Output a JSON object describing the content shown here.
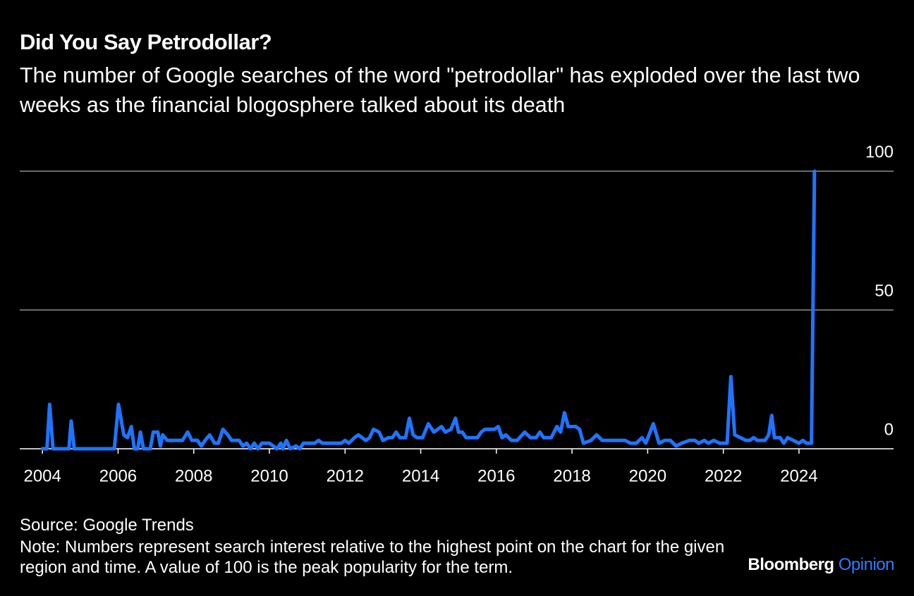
{
  "chart_data": {
    "type": "line",
    "title": "Did You Say Petrodollar?",
    "subtitle": "The number of Google searches of the word \"petrodollar\" has exploded over the last two weeks as the financial blogosphere talked about its death",
    "source": "Source: Google Trends",
    "note": "Note: Numbers represent search interest relative to the highest point on the chart for the given region and time. A value of 100 is the peak popularity for the term.",
    "brand": "Bloomberg",
    "brand_sub": "Opinion",
    "x": [
      2004.0,
      2004.12,
      2004.19,
      2004.28,
      2004.7,
      2004.76,
      2004.84,
      2005.9,
      2006.01,
      2006.15,
      2006.25,
      2006.35,
      2006.43,
      2006.52,
      2006.59,
      2006.67,
      2006.85,
      2006.93,
      2007.05,
      2007.12,
      2007.18,
      2007.3,
      2007.7,
      2007.84,
      2007.95,
      2008.1,
      2008.2,
      2008.3,
      2008.42,
      2008.55,
      2008.65,
      2008.77,
      2008.9,
      2009.0,
      2009.2,
      2009.3,
      2009.4,
      2009.5,
      2009.6,
      2009.7,
      2009.8,
      2010.0,
      2010.1,
      2010.2,
      2010.3,
      2010.35,
      2010.45,
      2010.55,
      2010.7,
      2010.8,
      2010.9,
      2011.2,
      2011.3,
      2011.4,
      2011.9,
      2012.0,
      2012.1,
      2012.25,
      2012.35,
      2012.45,
      2012.55,
      2012.65,
      2012.75,
      2012.9,
      2013.0,
      2013.15,
      2013.25,
      2013.35,
      2013.45,
      2013.6,
      2013.7,
      2013.8,
      2013.9,
      2014.05,
      2014.2,
      2014.35,
      2014.45,
      2014.55,
      2014.65,
      2014.8,
      2014.92,
      2015.0,
      2015.1,
      2015.2,
      2015.35,
      2015.5,
      2015.6,
      2015.7,
      2015.95,
      2016.05,
      2016.15,
      2016.25,
      2016.4,
      2016.55,
      2016.75,
      2016.9,
      2017.05,
      2017.15,
      2017.25,
      2017.45,
      2017.6,
      2017.7,
      2017.8,
      2017.9,
      2018.1,
      2018.2,
      2018.3,
      2018.5,
      2018.65,
      2018.8,
      2019.0,
      2019.4,
      2019.55,
      2019.7,
      2019.85,
      2019.95,
      2020.15,
      2020.3,
      2020.45,
      2020.6,
      2020.75,
      2020.9,
      2021.1,
      2021.25,
      2021.35,
      2021.5,
      2021.6,
      2021.75,
      2021.9,
      2022.1,
      2022.2,
      2022.3,
      2022.45,
      2022.6,
      2022.7,
      2022.8,
      2022.9,
      2023.1,
      2023.2,
      2023.28,
      2023.35,
      2023.5,
      2023.6,
      2023.7,
      2023.85,
      2024.0,
      2024.1,
      2024.2,
      2024.33,
      2024.41
    ],
    "series": [
      {
        "color": "#1f74ff",
        "values": [
          0,
          0,
          16,
          0,
          0,
          10,
          0,
          0,
          16,
          5,
          4,
          8,
          0,
          0,
          6,
          0,
          0,
          6,
          6,
          1,
          5,
          3,
          3,
          6,
          3,
          3,
          1,
          3,
          5,
          2,
          2,
          7,
          5,
          3,
          3,
          1,
          2,
          0,
          2,
          0,
          2,
          2,
          1,
          0,
          2,
          0,
          3,
          0,
          1,
          0,
          2,
          2,
          3,
          2,
          2,
          3,
          2,
          4,
          5,
          4,
          3,
          4,
          7,
          6,
          3,
          4,
          4,
          6,
          4,
          4,
          11,
          5,
          4,
          4,
          9,
          6,
          7,
          8,
          6,
          7,
          11,
          6,
          6,
          4,
          4,
          4,
          6,
          7,
          7,
          8,
          4,
          5,
          3,
          3,
          6,
          4,
          4,
          6,
          4,
          4,
          8,
          6,
          13,
          8,
          8,
          7,
          2,
          3,
          5,
          3,
          3,
          3,
          2,
          2,
          4,
          2,
          9,
          2,
          3,
          3,
          1,
          2,
          3,
          3,
          2,
          3,
          2,
          3,
          2,
          2,
          26,
          5,
          4,
          3,
          3,
          4,
          3,
          3,
          5,
          12,
          4,
          4,
          2,
          4,
          3,
          2,
          3,
          2,
          2,
          100
        ]
      }
    ],
    "xlim": [
      2003.4,
      2026.5
    ],
    "ylim": [
      0,
      100
    ],
    "xticks": [
      2004,
      2006,
      2008,
      2010,
      2012,
      2014,
      2016,
      2018,
      2020,
      2022,
      2024
    ],
    "yticks": [
      0,
      50,
      100
    ],
    "grid": true
  }
}
